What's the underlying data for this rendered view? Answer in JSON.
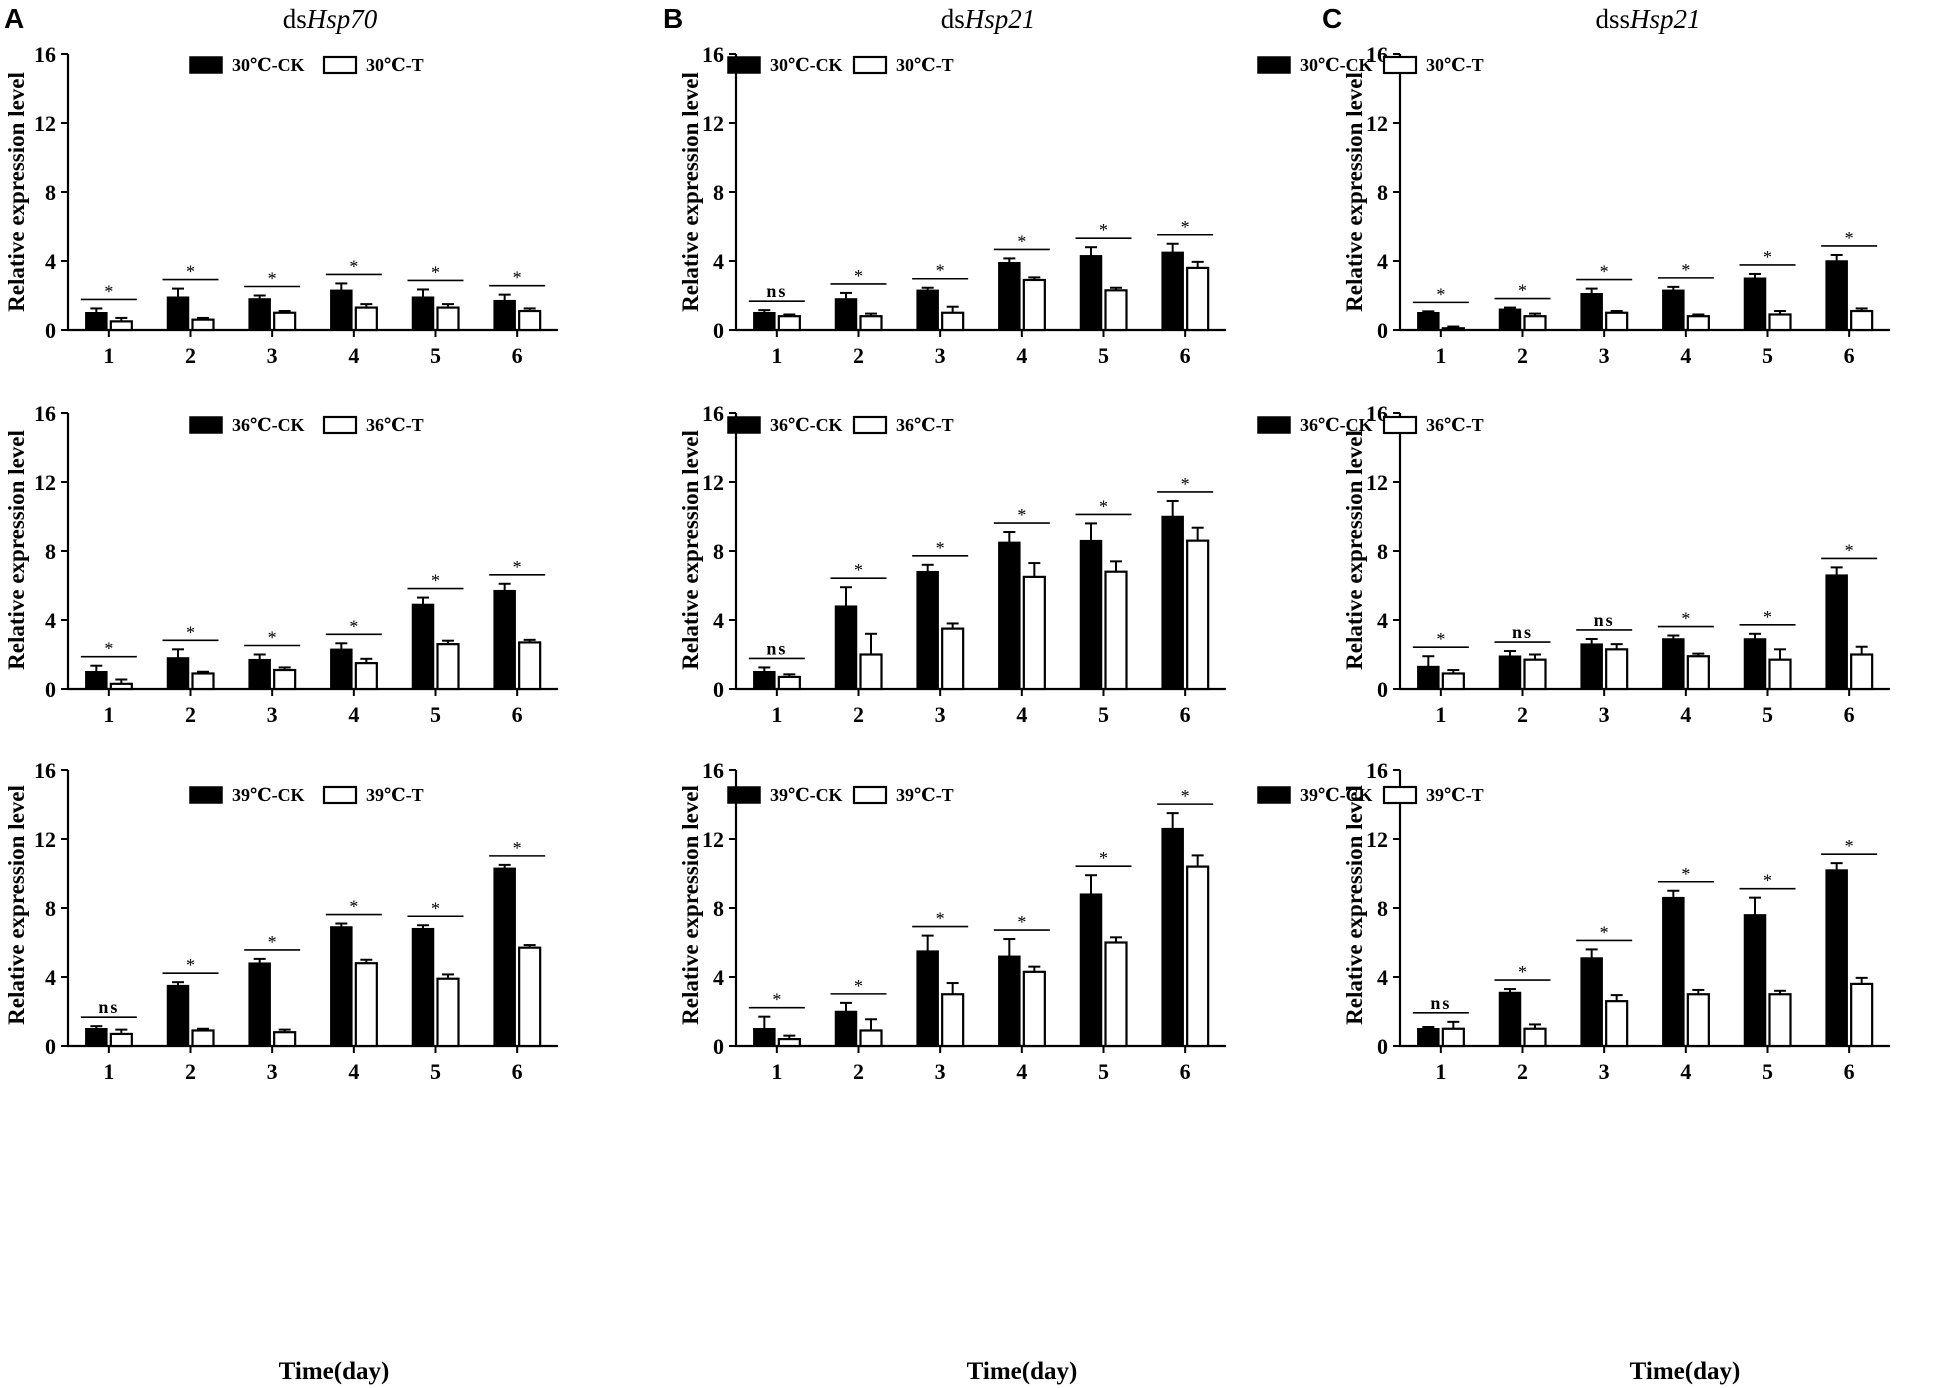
{
  "figure": {
    "panel_letters": [
      "A",
      "B",
      "C"
    ],
    "column_titles": [
      {
        "prefix": "ds",
        "gene": "Hsp70"
      },
      {
        "prefix": "ds",
        "gene": "Hsp21"
      },
      {
        "prefix": "dss",
        "gene": "Hsp21"
      }
    ],
    "x_axis_title": "Time(day)",
    "y_axis_title": "Relative expression level",
    "colors": {
      "ck_fill": "#000000",
      "t_fill": "#ffffff",
      "stroke": "#000000"
    }
  },
  "chart_data": [
    {
      "type": "bar",
      "panel": "A",
      "title": "dsHsp70",
      "temperature": "30℃",
      "ylabel": "Relative expression level",
      "xlabel": "",
      "ylim": [
        0,
        16
      ],
      "yticks": [
        0,
        4,
        8,
        12,
        16
      ],
      "categories": [
        "1",
        "2",
        "3",
        "4",
        "5",
        "6"
      ],
      "series": [
        {
          "name": "30℃-CK",
          "values": [
            1.0,
            1.9,
            1.8,
            2.3,
            1.9,
            1.7
          ],
          "errors": [
            0.25,
            0.5,
            0.2,
            0.4,
            0.45,
            0.35
          ]
        },
        {
          "name": "30℃-T",
          "values": [
            0.5,
            0.6,
            1.0,
            1.3,
            1.3,
            1.1
          ],
          "errors": [
            0.2,
            0.1,
            0.1,
            0.2,
            0.2,
            0.15
          ]
        }
      ],
      "significance": [
        "*",
        "*",
        "*",
        "*",
        "*",
        "*"
      ]
    },
    {
      "type": "bar",
      "panel": "B",
      "title": "dsHsp21",
      "temperature": "30℃",
      "ylabel": "Relative expression level",
      "xlabel": "",
      "ylim": [
        0,
        16
      ],
      "yticks": [
        0,
        4,
        8,
        12,
        16
      ],
      "categories": [
        "1",
        "2",
        "3",
        "4",
        "5",
        "6"
      ],
      "series": [
        {
          "name": "30℃-CK",
          "values": [
            1.0,
            1.8,
            2.3,
            3.9,
            4.3,
            4.5
          ],
          "errors": [
            0.15,
            0.35,
            0.15,
            0.25,
            0.5,
            0.5
          ]
        },
        {
          "name": "30℃-T",
          "values": [
            0.8,
            0.8,
            1.0,
            2.9,
            2.3,
            3.6
          ],
          "errors": [
            0.1,
            0.15,
            0.35,
            0.15,
            0.15,
            0.35
          ]
        }
      ],
      "significance": [
        "ns",
        "*",
        "*",
        "*",
        "*",
        "*"
      ]
    },
    {
      "type": "bar",
      "panel": "C",
      "title": "dssHsp21",
      "temperature": "30℃",
      "ylabel": "Relative expression level",
      "xlabel": "",
      "ylim": [
        0,
        16
      ],
      "yticks": [
        0,
        4,
        8,
        12,
        16
      ],
      "categories": [
        "1",
        "2",
        "3",
        "4",
        "5",
        "6"
      ],
      "series": [
        {
          "name": "30℃-CK",
          "values": [
            1.0,
            1.2,
            2.1,
            2.3,
            3.0,
            4.0
          ],
          "errors": [
            0.08,
            0.1,
            0.3,
            0.2,
            0.25,
            0.35
          ]
        },
        {
          "name": "30℃-T",
          "values": [
            0.1,
            0.8,
            1.0,
            0.8,
            0.9,
            1.1
          ],
          "errors": [
            0.1,
            0.15,
            0.1,
            0.1,
            0.2,
            0.15
          ]
        }
      ],
      "significance": [
        "*",
        "*",
        "*",
        "*",
        "*",
        "*"
      ]
    },
    {
      "type": "bar",
      "panel": "A",
      "title": "dsHsp70",
      "temperature": "36℃",
      "ylabel": "Relative expression level",
      "xlabel": "",
      "ylim": [
        0,
        16
      ],
      "yticks": [
        0,
        4,
        8,
        12,
        16
      ],
      "categories": [
        "1",
        "2",
        "3",
        "4",
        "5",
        "6"
      ],
      "series": [
        {
          "name": "36℃-CK",
          "values": [
            1.0,
            1.8,
            1.7,
            2.3,
            4.9,
            5.7
          ],
          "errors": [
            0.35,
            0.5,
            0.3,
            0.35,
            0.4,
            0.4
          ]
        },
        {
          "name": "36℃-T",
          "values": [
            0.3,
            0.9,
            1.1,
            1.5,
            2.6,
            2.7
          ],
          "errors": [
            0.25,
            0.1,
            0.15,
            0.25,
            0.2,
            0.15
          ]
        }
      ],
      "significance": [
        "*",
        "*",
        "*",
        "*",
        "*",
        "*"
      ]
    },
    {
      "type": "bar",
      "panel": "B",
      "title": "dsHsp21",
      "temperature": "36℃",
      "ylabel": "Relative expression level",
      "xlabel": "",
      "ylim": [
        0,
        16
      ],
      "yticks": [
        0,
        4,
        8,
        12,
        16
      ],
      "categories": [
        "1",
        "2",
        "3",
        "4",
        "5",
        "6"
      ],
      "series": [
        {
          "name": "36℃-CK",
          "values": [
            1.0,
            4.8,
            6.8,
            8.5,
            8.6,
            10.0
          ],
          "errors": [
            0.25,
            1.1,
            0.4,
            0.6,
            1.0,
            0.9
          ]
        },
        {
          "name": "36℃-T",
          "values": [
            0.7,
            2.0,
            3.5,
            6.5,
            6.8,
            8.6
          ],
          "errors": [
            0.15,
            1.2,
            0.3,
            0.8,
            0.6,
            0.75
          ]
        }
      ],
      "significance": [
        "ns",
        "*",
        "*",
        "*",
        "*",
        "*"
      ]
    },
    {
      "type": "bar",
      "panel": "C",
      "title": "dssHsp21",
      "temperature": "36℃",
      "ylabel": "Relative expression level",
      "xlabel": "",
      "ylim": [
        0,
        16
      ],
      "yticks": [
        0,
        4,
        8,
        12,
        16
      ],
      "categories": [
        "1",
        "2",
        "3",
        "4",
        "5",
        "6"
      ],
      "series": [
        {
          "name": "36℃-CK",
          "values": [
            1.3,
            1.9,
            2.6,
            2.9,
            2.9,
            6.6
          ],
          "errors": [
            0.6,
            0.3,
            0.3,
            0.2,
            0.3,
            0.45
          ]
        },
        {
          "name": "36℃-T",
          "values": [
            0.9,
            1.7,
            2.3,
            1.9,
            1.7,
            2.0
          ],
          "errors": [
            0.2,
            0.3,
            0.3,
            0.15,
            0.6,
            0.45
          ]
        }
      ],
      "significance": [
        "*",
        "ns",
        "ns",
        "*",
        "*",
        "*"
      ]
    },
    {
      "type": "bar",
      "panel": "A",
      "title": "dsHsp70",
      "temperature": "39℃",
      "ylabel": "Relative expression level",
      "xlabel": "Time(day)",
      "ylim": [
        0,
        16
      ],
      "yticks": [
        0,
        4,
        8,
        12,
        16
      ],
      "categories": [
        "1",
        "2",
        "3",
        "4",
        "5",
        "6"
      ],
      "series": [
        {
          "name": "39℃-CK",
          "values": [
            1.0,
            3.5,
            4.8,
            6.9,
            6.8,
            10.3
          ],
          "errors": [
            0.15,
            0.2,
            0.25,
            0.2,
            0.2,
            0.2
          ]
        },
        {
          "name": "39℃-T",
          "values": [
            0.7,
            0.9,
            0.8,
            4.8,
            3.9,
            5.7
          ],
          "errors": [
            0.25,
            0.1,
            0.15,
            0.2,
            0.25,
            0.15
          ]
        }
      ],
      "significance": [
        "ns",
        "*",
        "*",
        "*",
        "*",
        "*"
      ]
    },
    {
      "type": "bar",
      "panel": "B",
      "title": "dsHsp21",
      "temperature": "39℃",
      "ylabel": "Relative expression level",
      "xlabel": "Time(day)",
      "ylim": [
        0,
        16
      ],
      "yticks": [
        0,
        4,
        8,
        12,
        16
      ],
      "categories": [
        "1",
        "2",
        "3",
        "4",
        "5",
        "6"
      ],
      "series": [
        {
          "name": "39℃-CK",
          "values": [
            1.0,
            2.0,
            5.5,
            5.2,
            8.8,
            12.6
          ],
          "errors": [
            0.7,
            0.5,
            0.9,
            1.0,
            1.1,
            0.9
          ]
        },
        {
          "name": "39℃-T",
          "values": [
            0.4,
            0.9,
            3.0,
            4.3,
            6.0,
            10.4
          ],
          "errors": [
            0.2,
            0.65,
            0.65,
            0.3,
            0.3,
            0.65
          ]
        }
      ],
      "significance": [
        "*",
        "*",
        "*",
        "*",
        "*",
        "*"
      ]
    },
    {
      "type": "bar",
      "panel": "C",
      "title": "dssHsp21",
      "temperature": "39℃",
      "ylabel": "Relative expression level",
      "xlabel": "Time(day)",
      "ylim": [
        0,
        16
      ],
      "yticks": [
        0,
        4,
        8,
        12,
        16
      ],
      "categories": [
        "1",
        "2",
        "3",
        "4",
        "5",
        "6"
      ],
      "series": [
        {
          "name": "39℃-CK",
          "values": [
            1.0,
            3.1,
            5.1,
            8.6,
            7.6,
            10.2
          ],
          "errors": [
            0.1,
            0.2,
            0.5,
            0.4,
            1.0,
            0.4
          ]
        },
        {
          "name": "39℃-T",
          "values": [
            1.0,
            1.0,
            2.6,
            3.0,
            3.0,
            3.6
          ],
          "errors": [
            0.4,
            0.25,
            0.35,
            0.25,
            0.2,
            0.35
          ]
        }
      ],
      "significance": [
        "ns",
        "*",
        "*",
        "*",
        "*",
        "*"
      ]
    }
  ]
}
